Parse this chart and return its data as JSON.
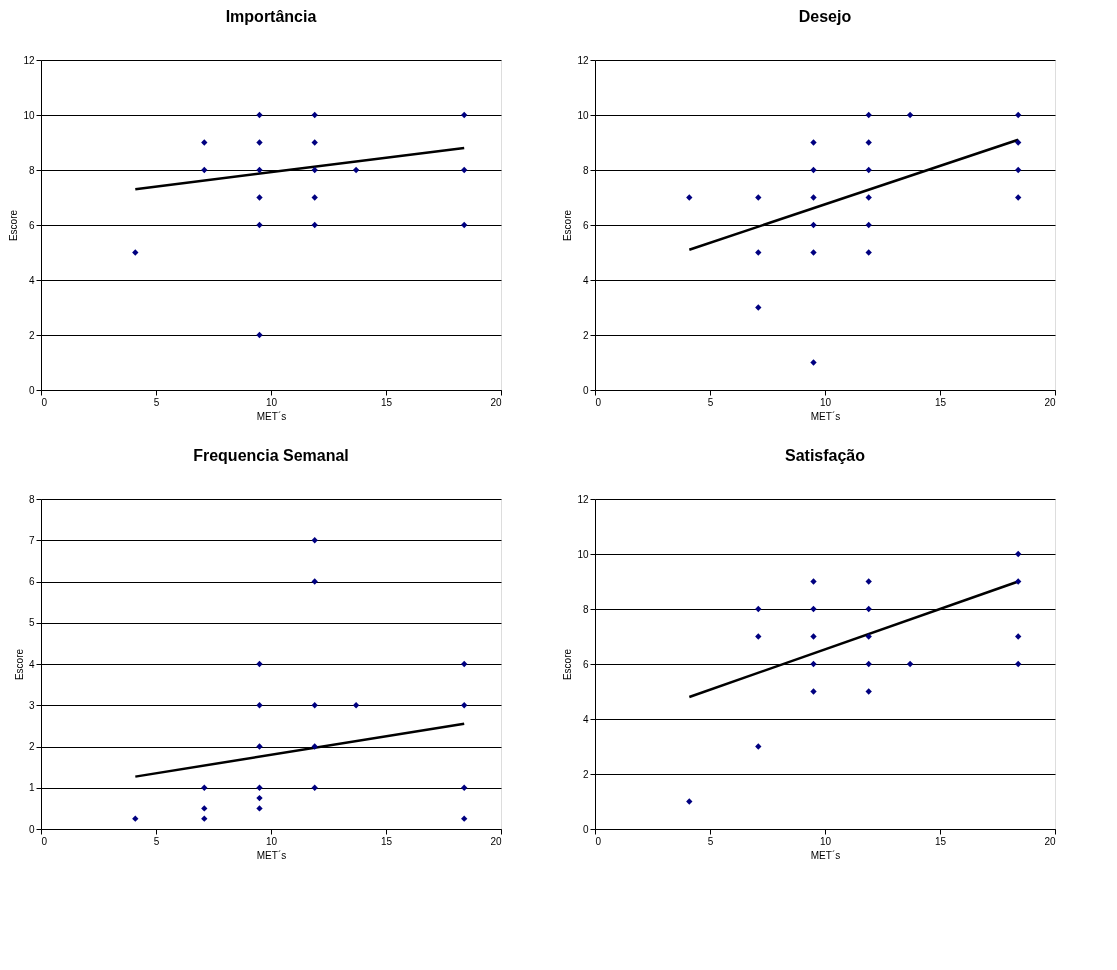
{
  "chart_data": [
    {
      "type": "scatter",
      "title": "Importância",
      "xlabel": "MET´s",
      "ylabel": "Escore",
      "xlim": [
        0,
        20
      ],
      "xticks": [
        0,
        5,
        10,
        15,
        20
      ],
      "ylim": [
        0,
        12
      ],
      "yticks": [
        0,
        2,
        4,
        6,
        8,
        10,
        12
      ],
      "grid": "y",
      "series": [
        {
          "color": "#000080",
          "marker": "diamond",
          "x": [
            4.1,
            7.1,
            7.1,
            9.5,
            9.5,
            9.5,
            9.5,
            9.5,
            9.5,
            11.9,
            11.9,
            11.9,
            11.9,
            11.9,
            13.7,
            18.4,
            18.4,
            18.4
          ],
          "values": [
            5,
            9,
            8,
            10,
            9,
            8,
            7,
            6,
            2,
            10,
            9,
            8,
            7,
            6,
            8,
            10,
            8,
            6
          ]
        },
        {
          "type": "line",
          "color": "#000000",
          "marker": "none",
          "line_style": "solid",
          "x": [
            4.1,
            18.4
          ],
          "values": [
            7.3,
            8.8
          ]
        }
      ]
    },
    {
      "type": "scatter",
      "title": "Desejo",
      "xlabel": "MET´s",
      "ylabel": "Escore",
      "xlim": [
        0,
        20
      ],
      "xticks": [
        0,
        5,
        10,
        15,
        20
      ],
      "ylim": [
        0,
        12
      ],
      "yticks": [
        0,
        2,
        4,
        6,
        8,
        10,
        12
      ],
      "grid": "y",
      "series": [
        {
          "color": "#000080",
          "marker": "diamond",
          "x": [
            4.1,
            7.1,
            7.1,
            7.1,
            9.5,
            9.5,
            9.5,
            9.5,
            9.5,
            9.5,
            11.9,
            11.9,
            11.9,
            11.9,
            11.9,
            11.9,
            13.7,
            18.4,
            18.4,
            18.4,
            18.4
          ],
          "values": [
            7,
            7,
            5,
            3,
            9,
            8,
            7,
            6,
            5,
            1,
            10,
            9,
            8,
            7,
            6,
            5,
            10,
            10,
            9,
            8,
            7
          ]
        },
        {
          "type": "line",
          "color": "#000000",
          "marker": "none",
          "line_style": "solid",
          "x": [
            4.1,
            18.4
          ],
          "values": [
            5.1,
            9.1
          ]
        }
      ]
    },
    {
      "type": "scatter",
      "title": "Frequencia Semanal",
      "xlabel": "MET´s",
      "ylabel": "Escore",
      "xlim": [
        0,
        20
      ],
      "xticks": [
        0,
        5,
        10,
        15,
        20
      ],
      "ylim": [
        0,
        8
      ],
      "yticks": [
        0,
        1,
        2,
        3,
        4,
        5,
        6,
        7,
        8
      ],
      "grid": "y",
      "series": [
        {
          "color": "#000080",
          "marker": "diamond",
          "x": [
            4.1,
            7.1,
            7.1,
            7.1,
            9.5,
            9.5,
            9.5,
            9.5,
            9.5,
            9.5,
            11.9,
            11.9,
            11.9,
            11.9,
            11.9,
            13.7,
            18.4,
            18.4,
            18.4,
            18.4
          ],
          "values": [
            0.25,
            1,
            0.5,
            0.25,
            4,
            3,
            2,
            1,
            0.75,
            0.5,
            7,
            6,
            3,
            2,
            1,
            3,
            4,
            3,
            1,
            0.25
          ]
        },
        {
          "type": "line",
          "color": "#000000",
          "marker": "none",
          "line_style": "solid",
          "x": [
            4.1,
            18.4
          ],
          "values": [
            1.27,
            2.55
          ]
        }
      ]
    },
    {
      "type": "scatter",
      "title": "Satisfação",
      "xlabel": "MET´s",
      "ylabel": "Escore",
      "xlim": [
        0,
        20
      ],
      "xticks": [
        0,
        5,
        10,
        15,
        20
      ],
      "ylim": [
        0,
        12
      ],
      "yticks": [
        0,
        2,
        4,
        6,
        8,
        10,
        12
      ],
      "grid": "y",
      "series": [
        {
          "color": "#000080",
          "marker": "diamond",
          "x": [
            4.1,
            7.1,
            7.1,
            7.1,
            9.5,
            9.5,
            9.5,
            9.5,
            9.5,
            11.9,
            11.9,
            11.9,
            11.9,
            11.9,
            13.7,
            18.4,
            18.4,
            18.4,
            18.4
          ],
          "values": [
            1,
            8,
            7,
            3,
            9,
            8,
            7,
            6,
            5,
            9,
            8,
            7,
            6,
            5,
            6,
            10,
            9,
            7,
            6
          ]
        },
        {
          "type": "line",
          "color": "#000000",
          "marker": "none",
          "line_style": "solid",
          "x": [
            4.1,
            18.4
          ],
          "values": [
            4.8,
            9.0
          ]
        }
      ]
    }
  ]
}
